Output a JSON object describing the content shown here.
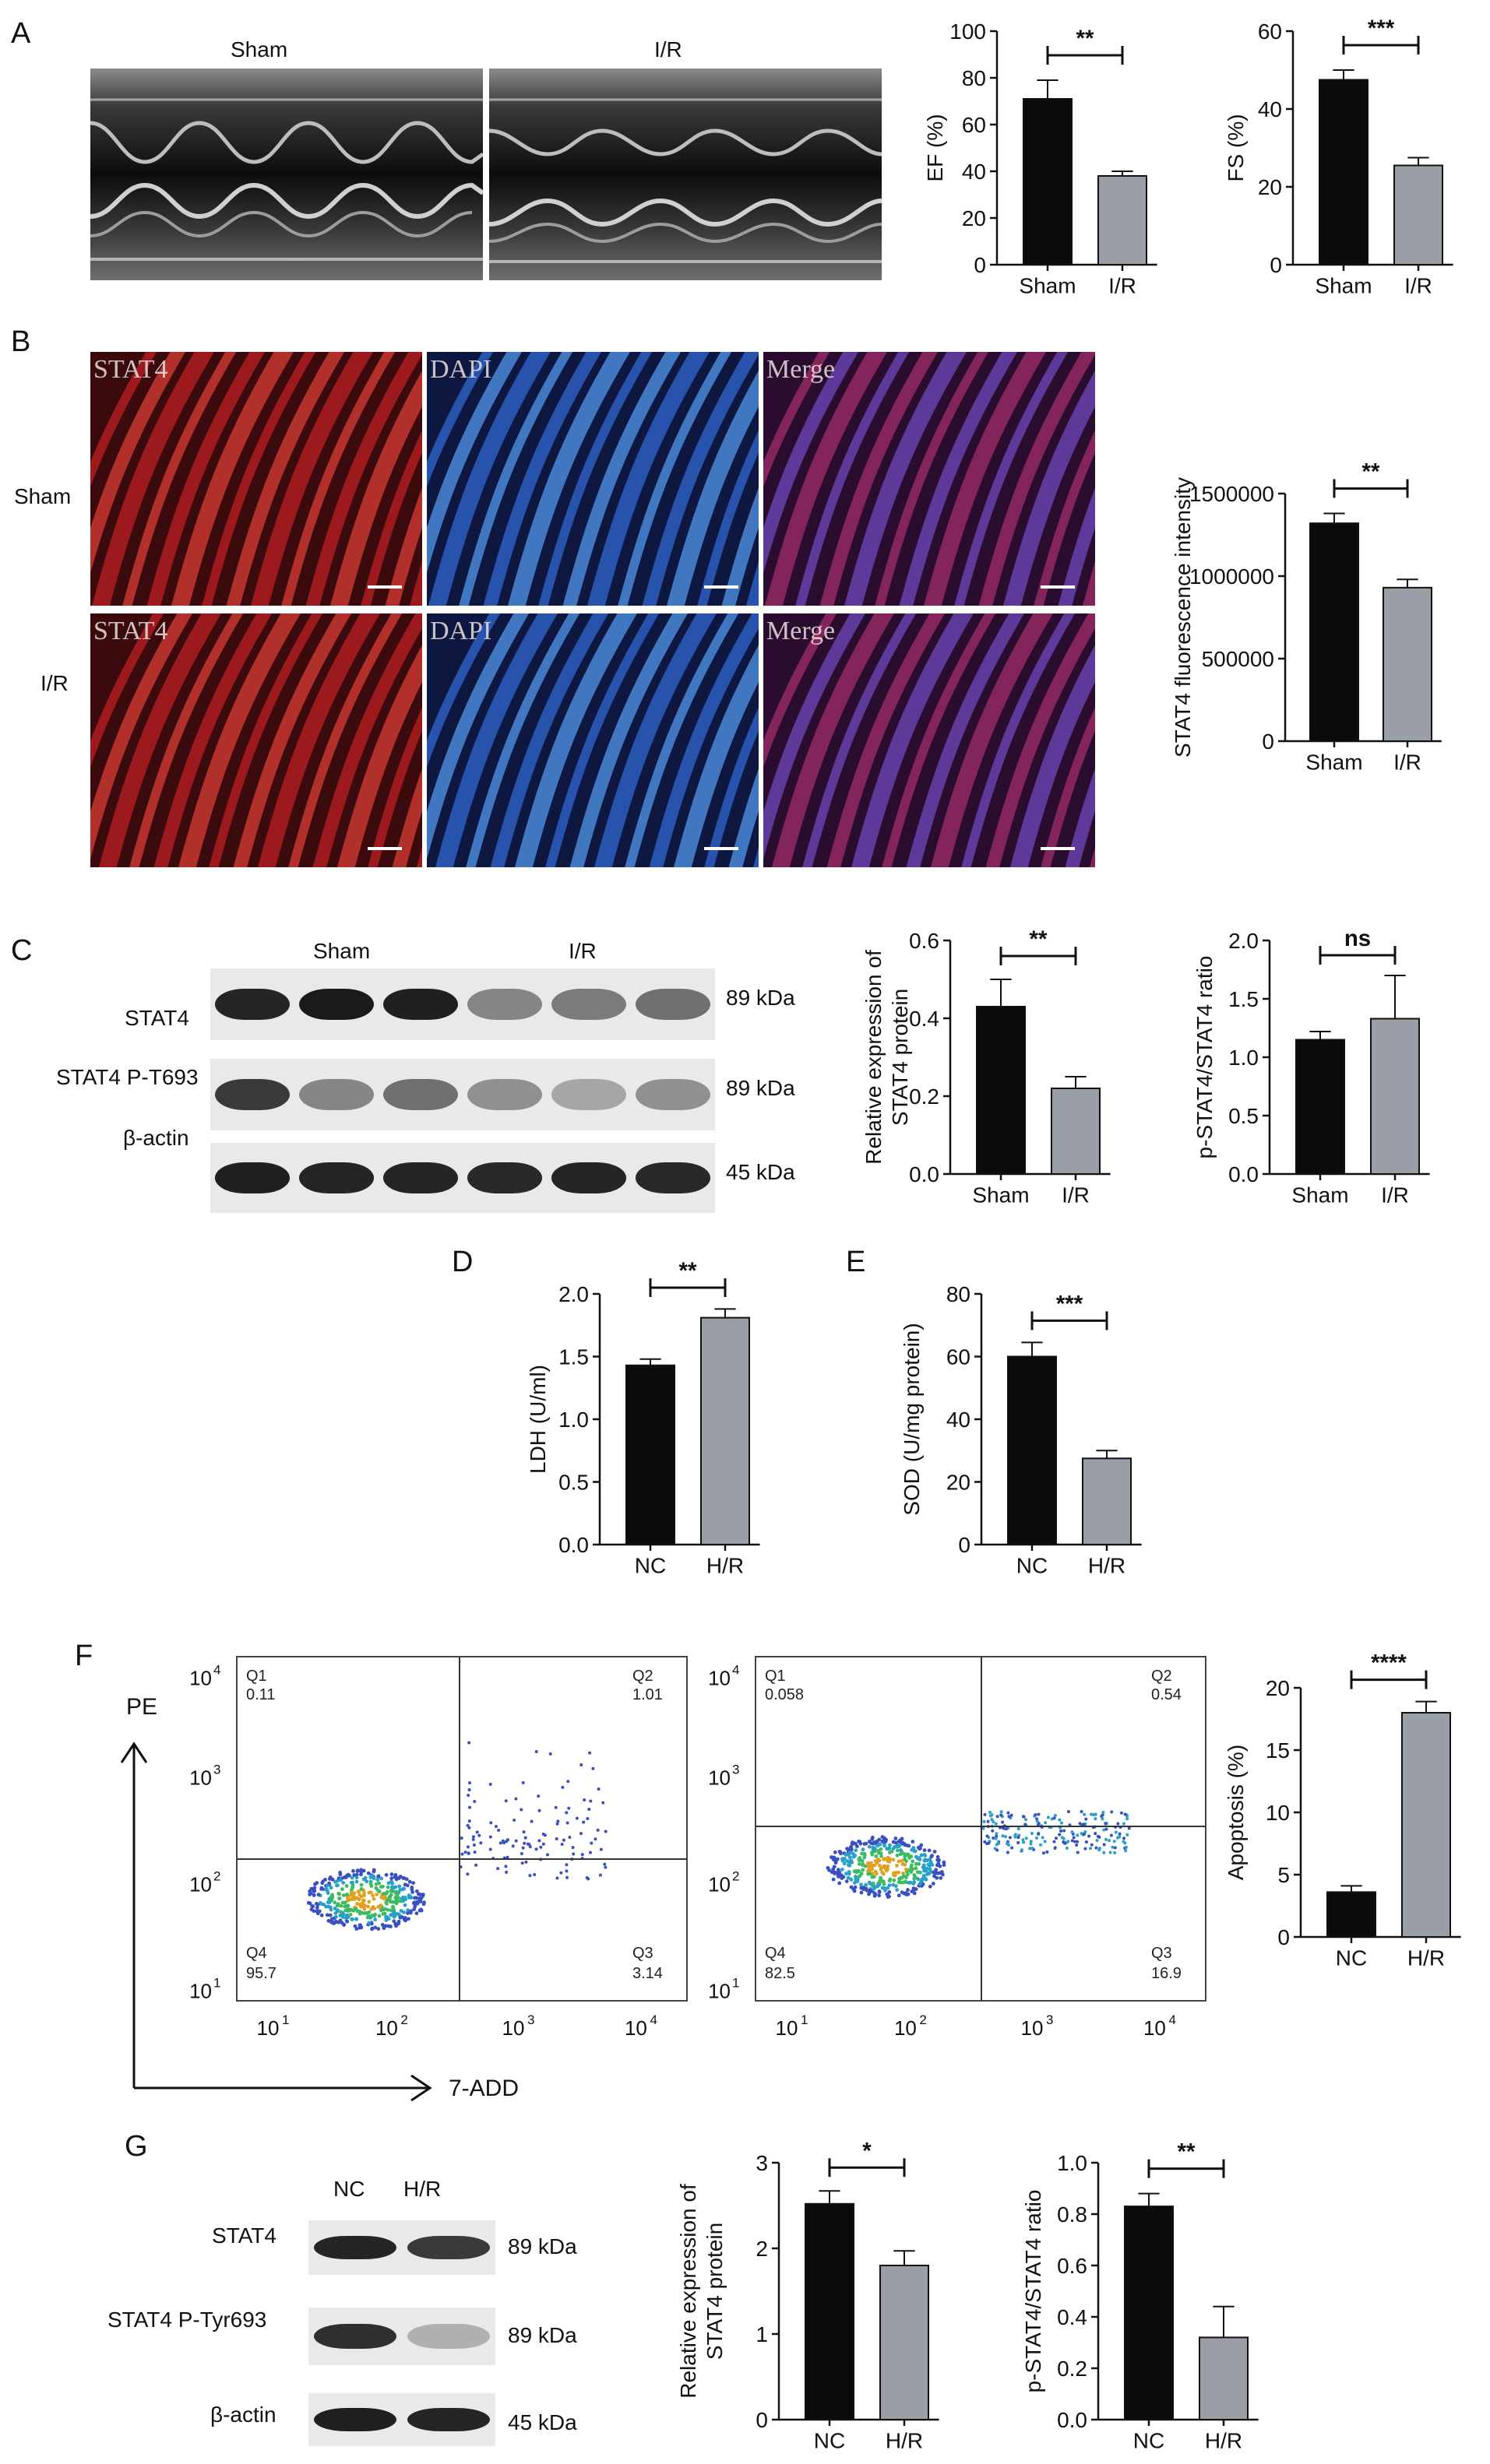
{
  "panels": {
    "A": {
      "letter": "A",
      "echo": {
        "left_label": "Sham",
        "right_label": "I/R"
      },
      "charts": [
        {
          "id": "ef",
          "type": "bar",
          "ylabel": "EF (%)",
          "categories": [
            "Sham",
            "I/R"
          ],
          "values": [
            71,
            38
          ],
          "errors": [
            8,
            2
          ],
          "ylim": [
            0,
            100
          ],
          "yticks": [
            0,
            20,
            40,
            60,
            80,
            100
          ],
          "sig": "**",
          "colors": [
            "#0b0b0b",
            "#9a9ea6"
          ]
        },
        {
          "id": "fs",
          "type": "bar",
          "ylabel": "FS (%)",
          "categories": [
            "Sham",
            "I/R"
          ],
          "values": [
            47.5,
            25.5
          ],
          "errors": [
            2.5,
            2
          ],
          "ylim": [
            0,
            60
          ],
          "yticks": [
            0,
            20,
            40,
            60
          ],
          "sig": "***",
          "colors": [
            "#0b0b0b",
            "#9a9ea6"
          ]
        }
      ]
    },
    "B": {
      "letter": "B",
      "rows": [
        "Sham",
        "I/R"
      ],
      "channels": [
        "STAT4",
        "DAPI",
        "Merge"
      ],
      "chart": {
        "id": "stat4fl",
        "type": "bar",
        "ylabel": "STAT4 fluorescence intensity",
        "categories": [
          "Sham",
          "I/R"
        ],
        "values": [
          1320000,
          930000
        ],
        "errors": [
          60000,
          50000
        ],
        "ylim": [
          0,
          1500000
        ],
        "yticks": [
          0,
          500000,
          1000000,
          1500000
        ],
        "ytick_labels": [
          "0",
          "500000",
          "1000000",
          "1500000"
        ],
        "sig": "**",
        "colors": [
          "#0b0b0b",
          "#9a9ea6"
        ]
      }
    },
    "C": {
      "letter": "C",
      "groups": [
        "Sham",
        "I/R"
      ],
      "blot_rows": [
        {
          "label": "STAT4",
          "kda": "89 kDa"
        },
        {
          "label": "STAT4 P-T693",
          "kda": "89 kDa"
        },
        {
          "label": "β-actin",
          "kda": "45 kDa"
        }
      ],
      "charts": [
        {
          "id": "c1",
          "type": "bar",
          "ylabel_lines": [
            "Relative expression of",
            "STAT4 protein"
          ],
          "categories": [
            "Sham",
            "I/R"
          ],
          "values": [
            0.43,
            0.22
          ],
          "errors": [
            0.07,
            0.03
          ],
          "ylim": [
            0,
            0.6
          ],
          "yticks": [
            0,
            0.2,
            0.4,
            0.6
          ],
          "ytick_labels": [
            "0.0",
            "0.2",
            "0.4",
            "0.6"
          ],
          "sig": "**",
          "colors": [
            "#0b0b0b",
            "#9a9ea6"
          ]
        },
        {
          "id": "c2",
          "type": "bar",
          "ylabel": "p-STAT4/STAT4 ratio",
          "categories": [
            "Sham",
            "I/R"
          ],
          "values": [
            1.15,
            1.33
          ],
          "errors": [
            0.07,
            0.37
          ],
          "ylim": [
            0,
            2.0
          ],
          "yticks": [
            0,
            0.5,
            1.0,
            1.5,
            2.0
          ],
          "ytick_labels": [
            "0.0",
            "0.5",
            "1.0",
            "1.5",
            "2.0"
          ],
          "sig": "ns",
          "colors": [
            "#0b0b0b",
            "#9a9ea6"
          ]
        }
      ]
    },
    "D": {
      "letter": "D",
      "chart": {
        "id": "ldh",
        "type": "bar",
        "ylabel": "LDH (U/ml)",
        "categories": [
          "NC",
          "H/R"
        ],
        "values": [
          1.43,
          1.81
        ],
        "errors": [
          0.05,
          0.07
        ],
        "ylim": [
          0,
          2.0
        ],
        "yticks": [
          0,
          0.5,
          1.0,
          1.5,
          2.0
        ],
        "ytick_labels": [
          "0.0",
          "0.5",
          "1.0",
          "1.5",
          "2.0"
        ],
        "sig": "**",
        "colors": [
          "#0b0b0b",
          "#9a9ea6"
        ]
      }
    },
    "E": {
      "letter": "E",
      "chart": {
        "id": "sod",
        "type": "bar",
        "ylabel": "SOD (U/mg protein)",
        "categories": [
          "NC",
          "H/R"
        ],
        "values": [
          60,
          27.5
        ],
        "errors": [
          4.5,
          2.5
        ],
        "ylim": [
          0,
          80
        ],
        "yticks": [
          0,
          20,
          40,
          60,
          80
        ],
        "ytick_labels": [
          "0",
          "20",
          "40",
          "60",
          "80"
        ],
        "sig": "***",
        "colors": [
          "#0b0b0b",
          "#9a9ea6"
        ]
      }
    },
    "F": {
      "letter": "F",
      "pe_label": "PE",
      "add_label": "7-ADD",
      "flow_ticks_x": [
        "10",
        "10",
        "10",
        "10"
      ],
      "flow_ticks_y": [
        "10",
        "10",
        "10",
        "10"
      ],
      "flow_exp": [
        "1",
        "2",
        "3",
        "4"
      ],
      "flows": [
        {
          "q1": "Q1",
          "q1v": "0.11",
          "q2": "Q2",
          "q2v": "1.01",
          "q3": "Q3",
          "q3v": "3.14",
          "q4": "Q4",
          "q4v": "95.7"
        },
        {
          "q1": "Q1",
          "q1v": "0.058",
          "q2": "Q2",
          "q2v": "0.54",
          "q3": "Q3",
          "q3v": "16.9",
          "q4": "Q4",
          "q4v": "82.5"
        }
      ],
      "chart": {
        "id": "apop",
        "type": "bar",
        "ylabel": "Apoptosis (%)",
        "categories": [
          "NC",
          "H/R"
        ],
        "values": [
          3.6,
          18
        ],
        "errors": [
          0.5,
          0.9
        ],
        "ylim": [
          0,
          20
        ],
        "yticks": [
          0,
          5,
          10,
          15,
          20
        ],
        "ytick_labels": [
          "0",
          "5",
          "10",
          "15",
          "20"
        ],
        "sig": "****",
        "colors": [
          "#0b0b0b",
          "#9a9ea6"
        ]
      }
    },
    "G": {
      "letter": "G",
      "groups": [
        "NC",
        "H/R"
      ],
      "blot_rows": [
        {
          "label": "STAT4",
          "kda": "89 kDa"
        },
        {
          "label": "STAT4 P-Tyr693",
          "kda": "89 kDa"
        },
        {
          "label": "β-actin",
          "kda": "45 kDa"
        }
      ],
      "charts": [
        {
          "id": "g1",
          "type": "bar",
          "ylabel_lines": [
            "Relative expression of",
            "STAT4 protein"
          ],
          "categories": [
            "NC",
            "H/R"
          ],
          "values": [
            2.52,
            1.8
          ],
          "errors": [
            0.15,
            0.17
          ],
          "ylim": [
            0,
            3
          ],
          "yticks": [
            0,
            1,
            2,
            3
          ],
          "ytick_labels": [
            "0",
            "1",
            "2",
            "3"
          ],
          "sig": "*",
          "colors": [
            "#0b0b0b",
            "#9a9ea6"
          ]
        },
        {
          "id": "g2",
          "type": "bar",
          "ylabel": "p-STAT4/STAT4 ratio",
          "categories": [
            "NC",
            "H/R"
          ],
          "values": [
            0.83,
            0.32
          ],
          "errors": [
            0.05,
            0.12
          ],
          "ylim": [
            0,
            1.0
          ],
          "yticks": [
            0,
            0.2,
            0.4,
            0.6,
            0.8,
            1.0
          ],
          "ytick_labels": [
            "0.0",
            "0.2",
            "0.4",
            "0.6",
            "0.8",
            "1.0"
          ],
          "sig": "**",
          "colors": [
            "#0b0b0b",
            "#9a9ea6"
          ]
        }
      ]
    }
  }
}
